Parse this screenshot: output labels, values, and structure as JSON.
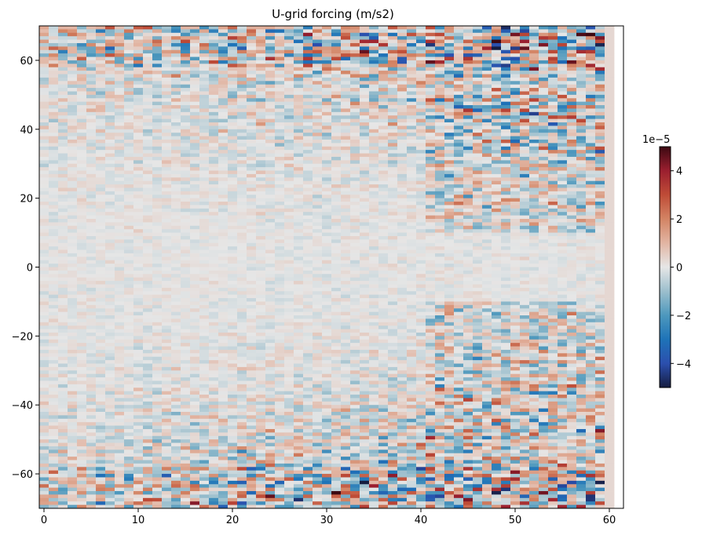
{
  "chart_data": {
    "type": "heatmap",
    "title": "U-grid forcing (m/s2)",
    "xlabel": "",
    "ylabel": "",
    "xlim": [
      -0.5,
      61.5
    ],
    "ylim": [
      -70,
      70
    ],
    "x_ticks": [
      0,
      10,
      20,
      30,
      40,
      50,
      60
    ],
    "x_tick_labels": [
      "0",
      "10",
      "20",
      "30",
      "40",
      "50",
      "60"
    ],
    "y_ticks": [
      -60,
      -40,
      -20,
      0,
      20,
      40,
      60
    ],
    "y_tick_labels": [
      "−60",
      "−40",
      "−20",
      "0",
      "20",
      "40",
      "60"
    ],
    "grid": false,
    "colormap": "balance (diverging blue-white-red)",
    "colorbar": {
      "range": [
        -5,
        5
      ],
      "ticks": [
        -4,
        -2,
        0,
        2,
        4
      ],
      "tick_labels": [
        "−4",
        "−2",
        "0",
        "2",
        "4"
      ],
      "offset_label": "1e−5",
      "colors": [
        "#161d40",
        "#2b4fae",
        "#1e73b8",
        "#4d98bd",
        "#9cbfcd",
        "#e6e6e6",
        "#e2b5a3",
        "#d38464",
        "#bf4c37",
        "#9b1f2f",
        "#3c0912"
      ]
    },
    "field_description_hint": "columns 0–60 (x), latitude −70 to 70 (y); strong noisy forcing near |y|>40 and x>40, weak near equator"
  }
}
